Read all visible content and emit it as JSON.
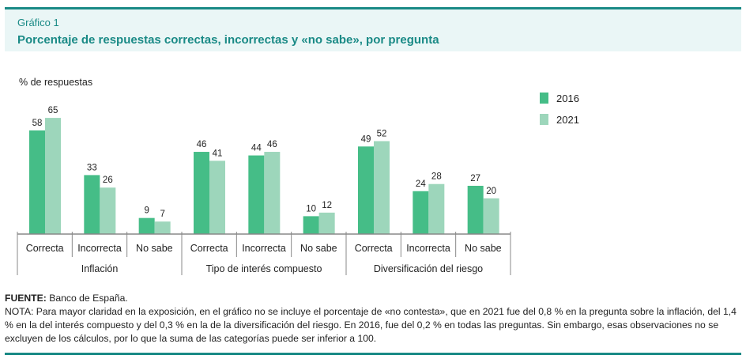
{
  "header": {
    "kicker": "Gráfico 1",
    "title": "Porcentaje de respuestas correctas, incorrectas y «no sabe», por pregunta"
  },
  "chart_data": {
    "type": "bar",
    "ylabel": "% de respuestas",
    "ylim": [
      0,
      70
    ],
    "groups": [
      "Inflación",
      "Tipo de interés compuesto",
      "Diversificación del riesgo"
    ],
    "categories": [
      "Correcta",
      "Incorrecta",
      "No sabe",
      "Correcta",
      "Incorrecta",
      "No sabe",
      "Correcta",
      "Incorrecta",
      "No sabe"
    ],
    "series": [
      {
        "name": "2016",
        "color": "#45bd87",
        "values": [
          58,
          33,
          9,
          46,
          44,
          10,
          49,
          24,
          27
        ]
      },
      {
        "name": "2021",
        "color": "#9dd6bb",
        "values": [
          65,
          26,
          7,
          41,
          46,
          12,
          52,
          28,
          20
        ]
      }
    ],
    "legend_position": "top-right",
    "grid": false
  },
  "footer": {
    "source_label": "FUENTE:",
    "source": " Banco de España.",
    "note": "NOTA: Para mayor claridad en la exposición, en el gráfico no se incluye el porcentaje de «no contesta», que en 2021 fue del 0,8 % en la pregunta sobre la inflación, del 1,4 % en la del interés compuesto y del 0,3 % en la de la diversificación del riesgo. En 2016, fue del 0,2 % en todas las preguntas. Sin embargo, esas observaciones no se excluyen de los cálculos, por lo que la suma de las categorías puede ser inferior a 100."
  }
}
